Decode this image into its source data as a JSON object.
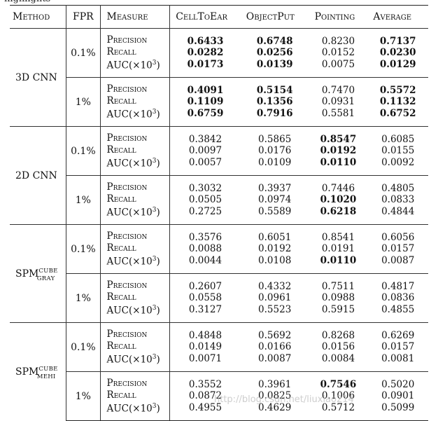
{
  "top_partial_text": "highlights",
  "header": {
    "method": "Method",
    "fpr": "FPR",
    "measure": "Measure",
    "col1": "CellToEar",
    "col2": "ObjectPut",
    "col3": "Pointing",
    "col4": "Average"
  },
  "measure_labels": {
    "precision": "Precision",
    "recall": "Recall",
    "auc_prefix": "AUC(×10",
    "auc_exp": "3",
    "auc_suffix": ")"
  },
  "groups": [
    {
      "method": "3D CNN",
      "blocks": [
        {
          "fpr": "0.1%",
          "rows": [
            [
              "0.6433",
              "0.6748",
              "0.8230",
              "0.7137"
            ],
            [
              "0.0282",
              "0.0256",
              "0.0152",
              "0.0230"
            ],
            [
              "0.0173",
              "0.0139",
              "0.0075",
              "0.0129"
            ]
          ]
        },
        {
          "fpr": "1%",
          "rows": [
            [
              "0.4091",
              "0.5154",
              "0.7470",
              "0.5572"
            ],
            [
              "0.1109",
              "0.1356",
              "0.0931",
              "0.1132"
            ],
            [
              "0.6759",
              "0.7916",
              "0.5581",
              "0.6752"
            ]
          ]
        }
      ]
    },
    {
      "method": "2D CNN",
      "blocks": [
        {
          "fpr": "0.1%",
          "rows": [
            [
              "0.3842",
              "0.5865",
              "0.8547",
              "0.6085"
            ],
            [
              "0.0097",
              "0.0176",
              "0.0192",
              "0.0155"
            ],
            [
              "0.0057",
              "0.0109",
              "0.0110",
              "0.0092"
            ]
          ]
        },
        {
          "fpr": "1%",
          "rows": [
            [
              "0.3032",
              "0.3937",
              "0.7446",
              "0.4805"
            ],
            [
              "0.0505",
              "0.0974",
              "0.1020",
              "0.0833"
            ],
            [
              "0.2725",
              "0.5589",
              "0.6218",
              "0.4844"
            ]
          ]
        }
      ]
    },
    {
      "method": "SPM",
      "method_sup": "CUBE",
      "method_sub": "GRAY",
      "blocks": [
        {
          "fpr": "0.1%",
          "rows": [
            [
              "0.3576",
              "0.6051",
              "0.8541",
              "0.6056"
            ],
            [
              "0.0088",
              "0.0192",
              "0.0191",
              "0.0157"
            ],
            [
              "0.0044",
              "0.0108",
              "0.0110",
              "0.0087"
            ]
          ]
        },
        {
          "fpr": "1%",
          "rows": [
            [
              "0.2607",
              "0.4332",
              "0.7511",
              "0.4817"
            ],
            [
              "0.0558",
              "0.0961",
              "0.0988",
              "0.0836"
            ],
            [
              "0.3127",
              "0.5523",
              "0.5915",
              "0.4855"
            ]
          ]
        }
      ]
    },
    {
      "method": "SPM",
      "method_sup": "CUBE",
      "method_sub": "MEHI",
      "blocks": [
        {
          "fpr": "0.1%",
          "rows": [
            [
              "0.4848",
              "0.5692",
              "0.8268",
              "0.6269"
            ],
            [
              "0.0149",
              "0.0166",
              "0.0156",
              "0.0157"
            ],
            [
              "0.0071",
              "0.0087",
              "0.0084",
              "0.0081"
            ]
          ]
        },
        {
          "fpr": "1%",
          "rows": [
            [
              "0.3552",
              "0.3961",
              "0.7546",
              "0.5020"
            ],
            [
              "0.0872",
              "0.0825",
              "0.1006",
              "0.0901"
            ],
            [
              "0.4955",
              "0.4629",
              "0.5712",
              "0.5099"
            ]
          ]
        }
      ]
    }
  ],
  "bold_cells": [
    "0-0-0-0",
    "0-0-0-1",
    "0-0-0-3",
    "0-0-1-0",
    "0-0-1-1",
    "0-0-1-3",
    "0-0-2-0",
    "0-0-2-1",
    "0-0-2-3",
    "0-1-0-0",
    "0-1-0-1",
    "0-1-0-3",
    "0-1-1-0",
    "0-1-1-1",
    "0-1-1-3",
    "0-1-2-0",
    "0-1-2-1",
    "0-1-2-3",
    "1-0-0-2",
    "1-0-1-2",
    "1-0-2-2",
    "1-1-1-2",
    "1-1-2-2",
    "2-0-2-2",
    "3-1-0-2"
  ],
  "watermark": "http://blog.csdn.net/liuxiao214"
}
